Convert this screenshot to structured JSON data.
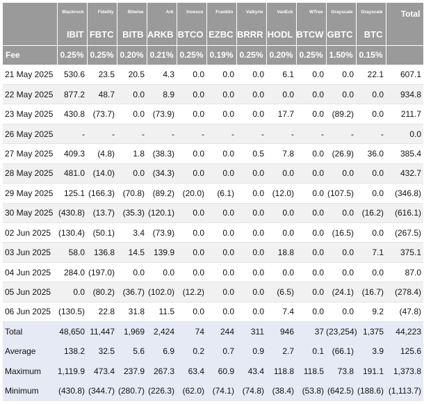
{
  "header": {
    "issuers": [
      "Blackrock",
      "Fidelity",
      "Bitwise",
      "Ark",
      "Invesco",
      "Franklin",
      "Valkyrie",
      "VanEck",
      "WTree",
      "Grayscale",
      "Grayscale"
    ],
    "tickers": [
      "IBIT",
      "FBTC",
      "BITB",
      "ARKB",
      "BTCO",
      "EZBC",
      "BRRR",
      "HODL",
      "BTCW",
      "GBTC",
      "BTC"
    ],
    "total_label": "Total",
    "fee_label": "Fee",
    "fees": [
      "0.25%",
      "0.25%",
      "0.20%",
      "0.21%",
      "0.25%",
      "0.19%",
      "0.25%",
      "0.20%",
      "0.25%",
      "1.50%",
      "0.15%"
    ]
  },
  "rows": [
    {
      "date": "21 May 2025",
      "values": [
        "530.6",
        "23.5",
        "20.5",
        "4.3",
        "0.0",
        "0.0",
        "0.0",
        "6.1",
        "0.0",
        "0.0",
        "22.1"
      ],
      "total": "607.1"
    },
    {
      "date": "22 May 2025",
      "values": [
        "877.2",
        "48.7",
        "0.0",
        "8.9",
        "0.0",
        "0.0",
        "0.0",
        "0.0",
        "0.0",
        "0.0",
        "0.0"
      ],
      "total": "934.8"
    },
    {
      "date": "23 May 2025",
      "values": [
        "430.8",
        "(73.7)",
        "0.0",
        "(73.9)",
        "0.0",
        "0.0",
        "0.0",
        "17.7",
        "0.0",
        "(89.2)",
        "0.0"
      ],
      "total": "211.7"
    },
    {
      "date": "26 May 2025",
      "values": [
        "-",
        "-",
        "-",
        "-",
        "-",
        "-",
        "-",
        "-",
        "-",
        "-",
        "-"
      ],
      "total": "0.0"
    },
    {
      "date": "27 May 2025",
      "values": [
        "409.3",
        "(4.8)",
        "1.8",
        "(38.3)",
        "0.0",
        "0.0",
        "0.5",
        "7.8",
        "0.0",
        "(26.9)",
        "36.0"
      ],
      "total": "385.4"
    },
    {
      "date": "28 May 2025",
      "values": [
        "481.0",
        "(14.0)",
        "0.0",
        "(34.3)",
        "0.0",
        "0.0",
        "0.0",
        "0.0",
        "0.0",
        "0.0",
        "0.0"
      ],
      "total": "432.7"
    },
    {
      "date": "29 May 2025",
      "values": [
        "125.1",
        "(166.3)",
        "(70.8)",
        "(89.2)",
        "(20.0)",
        "(6.1)",
        "0.0",
        "(12.0)",
        "0.0",
        "(107.5)",
        "0.0"
      ],
      "total": "(346.8)"
    },
    {
      "date": "30 May 2025",
      "values": [
        "(430.8)",
        "(13.7)",
        "(35.3)",
        "(120.1)",
        "0.0",
        "0.0",
        "0.0",
        "0.0",
        "0.0",
        "0.0",
        "(16.2)"
      ],
      "total": "(616.1)"
    },
    {
      "date": "02 Jun 2025",
      "values": [
        "(130.4)",
        "(50.1)",
        "3.4",
        "(73.9)",
        "0.0",
        "0.0",
        "0.0",
        "0.0",
        "0.0",
        "(16.5)",
        "0.0"
      ],
      "total": "(267.5)"
    },
    {
      "date": "03 Jun 2025",
      "values": [
        "58.0",
        "136.8",
        "14.5",
        "139.9",
        "0.0",
        "0.0",
        "0.0",
        "18.8",
        "0.0",
        "0.0",
        "7.1"
      ],
      "total": "375.1"
    },
    {
      "date": "04 Jun 2025",
      "values": [
        "284.0",
        "(197.0)",
        "0.0",
        "0.0",
        "0.0",
        "0.0",
        "0.0",
        "0.0",
        "0.0",
        "0.0",
        "0.0"
      ],
      "total": "87.0"
    },
    {
      "date": "05 Jun 2025",
      "values": [
        "0.0",
        "(80.2)",
        "(36.7)",
        "(102.0)",
        "(12.2)",
        "0.0",
        "0.0",
        "(6.5)",
        "0.0",
        "(24.1)",
        "(16.7)"
      ],
      "total": "(278.4)"
    },
    {
      "date": "06 Jun 2025",
      "values": [
        "(130.5)",
        "22.8",
        "31.8",
        "11.5",
        "0.0",
        "0.0",
        "0.0",
        "7.4",
        "0.0",
        "0.0",
        "9.2"
      ],
      "total": "(47.8)"
    }
  ],
  "summary": [
    {
      "label": "Total",
      "values": [
        "48,650",
        "11,447",
        "1,969",
        "2,424",
        "74",
        "244",
        "311",
        "946",
        "37",
        "(23,254)",
        "1,375"
      ],
      "total": "44,223"
    },
    {
      "label": "Average",
      "values": [
        "138.2",
        "32.5",
        "5.6",
        "6.9",
        "0.2",
        "0.7",
        "0.9",
        "2.7",
        "0.1",
        "(66.1)",
        "3.9"
      ],
      "total": "125.6"
    },
    {
      "label": "Maximum",
      "values": [
        "1,119.9",
        "473.4",
        "237.9",
        "267.3",
        "63.4",
        "60.9",
        "43.4",
        "118.8",
        "118.5",
        "73.8",
        "191.1"
      ],
      "total": "1,373.8"
    },
    {
      "label": "Minimum",
      "values": [
        "(430.8)",
        "(344.7)",
        "(280.7)",
        "(226.3)",
        "(62.0)",
        "(74.1)",
        "(74.8)",
        "(38.4)",
        "(53.8)",
        "(642.5)",
        "(188.6)"
      ],
      "total": "(1,113.7)"
    }
  ],
  "colors": {
    "header_bg": "#9a9a9a",
    "negative": "#d33a2c",
    "alt_row": "#f1f1f1",
    "summary_bg": "#e6eaf4"
  }
}
